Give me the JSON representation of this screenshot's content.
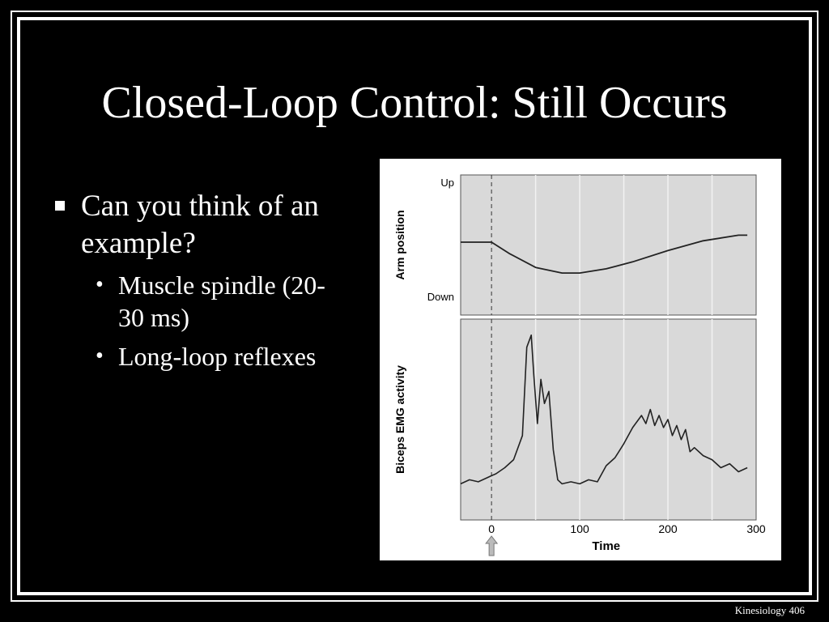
{
  "slide": {
    "title": "Closed-Loop Control: Still Occurs",
    "bullets": [
      {
        "text": "Can you think of an example?",
        "sub": [
          "Muscle spindle (20-30 ms)",
          "Long-loop reflexes"
        ]
      }
    ],
    "footer": "Kinesiology 406"
  },
  "chart_data": [
    {
      "type": "line",
      "ylabel": "Arm position",
      "y_tick_labels": [
        "Up",
        "Down"
      ],
      "xlim": [
        -35,
        300
      ],
      "ylim": [
        0,
        1
      ],
      "x": [
        -35,
        0,
        20,
        50,
        80,
        100,
        130,
        160,
        200,
        240,
        280,
        290
      ],
      "values": [
        0.52,
        0.52,
        0.44,
        0.34,
        0.3,
        0.3,
        0.33,
        0.38,
        0.46,
        0.53,
        0.57,
        0.57
      ],
      "stimulus_marker_x": 0,
      "grid": "vertical"
    },
    {
      "type": "line",
      "ylabel": "Biceps EMG activity",
      "xlabel": "Time",
      "x_tick_labels": [
        "0",
        "100",
        "200",
        "300"
      ],
      "xlim": [
        -35,
        300
      ],
      "ylim": [
        0,
        1
      ],
      "x": [
        -35,
        -25,
        -15,
        -5,
        0,
        5,
        15,
        25,
        35,
        40,
        45,
        48,
        52,
        56,
        60,
        65,
        70,
        75,
        80,
        90,
        100,
        110,
        120,
        130,
        140,
        150,
        160,
        170,
        175,
        180,
        185,
        190,
        195,
        200,
        205,
        210,
        215,
        220,
        225,
        230,
        240,
        250,
        260,
        270,
        280,
        290
      ],
      "values": [
        0.18,
        0.2,
        0.19,
        0.21,
        0.22,
        0.23,
        0.26,
        0.3,
        0.42,
        0.86,
        0.92,
        0.72,
        0.48,
        0.7,
        0.58,
        0.64,
        0.35,
        0.2,
        0.18,
        0.19,
        0.18,
        0.2,
        0.19,
        0.27,
        0.31,
        0.38,
        0.46,
        0.52,
        0.48,
        0.55,
        0.47,
        0.52,
        0.46,
        0.5,
        0.42,
        0.47,
        0.4,
        0.45,
        0.34,
        0.36,
        0.32,
        0.3,
        0.26,
        0.28,
        0.24,
        0.26
      ],
      "stimulus_marker_x": 0,
      "grid": "vertical"
    }
  ]
}
